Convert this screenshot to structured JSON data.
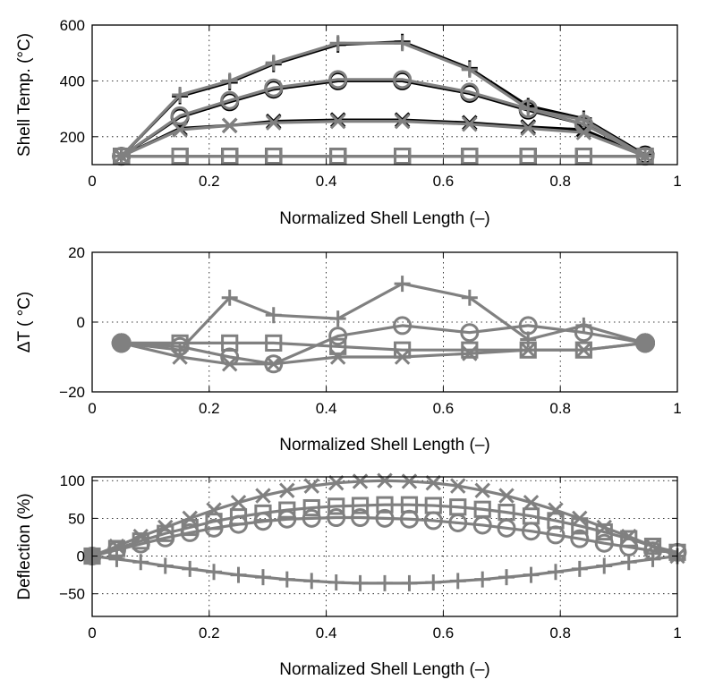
{
  "chart_data": [
    {
      "type": "line",
      "xlabel": "Normalized Shell Length (–)",
      "ylabel": "Shell Temp. (°C)",
      "xlim": [
        0,
        1
      ],
      "ylim": [
        100,
        600
      ],
      "xticks": [
        0,
        0.2,
        0.4,
        0.6,
        0.8,
        1
      ],
      "xtick_labels": [
        "0",
        "0.2",
        "0.4",
        "0.6",
        "0.8",
        "1"
      ],
      "yticks": [
        200,
        400,
        600
      ],
      "ytick_labels": [
        "200",
        "400",
        "600"
      ],
      "grid": true,
      "series": [
        {
          "name": "plus (black)",
          "marker": "plus",
          "color": "#000000",
          "x": [
            0.05,
            0.15,
            0.235,
            0.31,
            0.42,
            0.53,
            0.645,
            0.745,
            0.84,
            0.945
          ],
          "values": [
            130,
            345,
            395,
            460,
            530,
            540,
            445,
            310,
            265,
            135
          ]
        },
        {
          "name": "circle (black)",
          "marker": "circle",
          "color": "#000000",
          "x": [
            0.05,
            0.15,
            0.235,
            0.31,
            0.42,
            0.53,
            0.645,
            0.745,
            0.84,
            0.945
          ],
          "values": [
            130,
            270,
            325,
            370,
            400,
            400,
            355,
            295,
            245,
            135
          ]
        },
        {
          "name": "x (black)",
          "marker": "x",
          "color": "#000000",
          "x": [
            0.05,
            0.15,
            0.235,
            0.31,
            0.42,
            0.53,
            0.645,
            0.745,
            0.84,
            0.945
          ],
          "values": [
            130,
            230,
            240,
            255,
            260,
            260,
            250,
            235,
            225,
            130
          ]
        },
        {
          "name": "square (black)",
          "marker": "square",
          "color": "#000000",
          "x": [
            0.05,
            0.15,
            0.235,
            0.31,
            0.42,
            0.53,
            0.645,
            0.745,
            0.84,
            0.945
          ],
          "values": [
            130,
            130,
            130,
            130,
            130,
            130,
            130,
            130,
            130,
            130
          ]
        },
        {
          "name": "plus (gray)",
          "marker": "plus",
          "color": "#808080",
          "x": [
            0.05,
            0.15,
            0.235,
            0.31,
            0.42,
            0.53,
            0.645,
            0.745,
            0.84,
            0.945
          ],
          "values": [
            130,
            350,
            400,
            465,
            535,
            535,
            440,
            300,
            260,
            130
          ]
        },
        {
          "name": "circle (gray)",
          "marker": "circle",
          "color": "#808080",
          "x": [
            0.05,
            0.15,
            0.235,
            0.31,
            0.42,
            0.53,
            0.645,
            0.745,
            0.84,
            0.945
          ],
          "values": [
            130,
            275,
            330,
            375,
            405,
            405,
            360,
            300,
            245,
            130
          ]
        },
        {
          "name": "x (gray)",
          "marker": "x",
          "color": "#808080",
          "x": [
            0.05,
            0.15,
            0.235,
            0.31,
            0.42,
            0.53,
            0.645,
            0.745,
            0.84,
            0.945
          ],
          "values": [
            130,
            225,
            240,
            250,
            255,
            255,
            245,
            230,
            215,
            130
          ]
        },
        {
          "name": "square (gray)",
          "marker": "square",
          "color": "#808080",
          "x": [
            0.05,
            0.15,
            0.235,
            0.31,
            0.42,
            0.53,
            0.645,
            0.745,
            0.84,
            0.945
          ],
          "values": [
            130,
            130,
            130,
            130,
            130,
            130,
            130,
            130,
            130,
            130
          ]
        }
      ]
    },
    {
      "type": "line",
      "xlabel": "Normalized Shell Length (–)",
      "ylabel": "ΔT ( °C)",
      "xlim": [
        0,
        1
      ],
      "ylim": [
        -20,
        20
      ],
      "xticks": [
        0,
        0.2,
        0.4,
        0.6,
        0.8,
        1
      ],
      "xtick_labels": [
        "0",
        "0.2",
        "0.4",
        "0.6",
        "0.8",
        "1"
      ],
      "yticks": [
        -20,
        0,
        20
      ],
      "ytick_labels": [
        "−20",
        "0",
        "20"
      ],
      "grid": true,
      "series": [
        {
          "name": "plus",
          "marker": "plus",
          "color": "#808080",
          "x": [
            0.05,
            0.15,
            0.235,
            0.31,
            0.42,
            0.53,
            0.645,
            0.745,
            0.84,
            0.945
          ],
          "values": [
            -6,
            -8,
            7,
            2,
            1,
            11,
            7,
            -5,
            -1,
            -6
          ]
        },
        {
          "name": "circle",
          "marker": "circle",
          "color": "#808080",
          "x": [
            0.05,
            0.15,
            0.235,
            0.31,
            0.42,
            0.53,
            0.645,
            0.745,
            0.84,
            0.945
          ],
          "values": [
            -6,
            -7,
            -10,
            -12,
            -4,
            -1,
            -3,
            -1,
            -3,
            -6
          ]
        },
        {
          "name": "x",
          "marker": "x",
          "color": "#808080",
          "x": [
            0.05,
            0.15,
            0.235,
            0.31,
            0.42,
            0.53,
            0.645,
            0.745,
            0.84,
            0.945
          ],
          "values": [
            -6,
            -10,
            -12,
            -12,
            -10,
            -10,
            -9,
            -8,
            -8,
            -6
          ]
        },
        {
          "name": "square",
          "marker": "square",
          "color": "#808080",
          "x": [
            0.05,
            0.15,
            0.235,
            0.31,
            0.42,
            0.53,
            0.645,
            0.745,
            0.84,
            0.945
          ],
          "values": [
            -6,
            -6,
            -6,
            -6,
            -7,
            -8,
            -8,
            -8,
            -8,
            -6
          ]
        }
      ]
    },
    {
      "type": "line",
      "xlabel": "Normalized Shell Length (–)",
      "ylabel": "Deflection (%)",
      "xlim": [
        0,
        1
      ],
      "ylim": [
        -80,
        105
      ],
      "xticks": [
        0,
        0.2,
        0.4,
        0.6,
        0.8,
        1
      ],
      "xtick_labels": [
        "0",
        "0.2",
        "0.4",
        "0.6",
        "0.8",
        "1"
      ],
      "yticks": [
        -50,
        0,
        50,
        100
      ],
      "ytick_labels": [
        "−50",
        "0",
        "50",
        "100"
      ],
      "grid": true,
      "series": [
        {
          "name": "x",
          "marker": "x",
          "color": "#808080",
          "x": [
            0,
            0.042,
            0.083,
            0.125,
            0.167,
            0.208,
            0.25,
            0.292,
            0.333,
            0.375,
            0.417,
            0.458,
            0.5,
            0.542,
            0.583,
            0.625,
            0.667,
            0.708,
            0.75,
            0.792,
            0.833,
            0.875,
            0.917,
            0.958,
            1.0
          ],
          "values": [
            0,
            13,
            26,
            38,
            50,
            61,
            71,
            80,
            87,
            93,
            97,
            99,
            100,
            99,
            97,
            93,
            87,
            80,
            71,
            61,
            50,
            38,
            26,
            13,
            0
          ]
        },
        {
          "name": "square",
          "marker": "square",
          "color": "#808080",
          "x": [
            0,
            0.042,
            0.083,
            0.125,
            0.167,
            0.208,
            0.25,
            0.292,
            0.333,
            0.375,
            0.417,
            0.458,
            0.5,
            0.542,
            0.583,
            0.625,
            0.667,
            0.708,
            0.75,
            0.792,
            0.833,
            0.875,
            0.917,
            0.958,
            1.0
          ],
          "values": [
            0,
            10,
            20,
            30,
            38,
            46,
            52,
            57,
            61,
            64,
            66,
            67,
            68,
            68,
            67,
            65,
            62,
            58,
            53,
            47,
            40,
            32,
            23,
            13,
            5
          ]
        },
        {
          "name": "circle",
          "marker": "circle",
          "color": "#808080",
          "x": [
            0,
            0.042,
            0.083,
            0.125,
            0.167,
            0.208,
            0.25,
            0.292,
            0.333,
            0.375,
            0.417,
            0.458,
            0.5,
            0.542,
            0.583,
            0.625,
            0.667,
            0.708,
            0.75,
            0.792,
            0.833,
            0.875,
            0.917,
            0.958,
            1.0
          ],
          "values": [
            0,
            8,
            16,
            24,
            31,
            37,
            42,
            46,
            49,
            50,
            51,
            51,
            50,
            49,
            47,
            44,
            41,
            37,
            33,
            28,
            23,
            17,
            12,
            7,
            5
          ]
        },
        {
          "name": "plus",
          "marker": "plus",
          "color": "#808080",
          "x": [
            0,
            0.042,
            0.083,
            0.125,
            0.167,
            0.208,
            0.25,
            0.292,
            0.333,
            0.375,
            0.417,
            0.458,
            0.5,
            0.542,
            0.583,
            0.625,
            0.667,
            0.708,
            0.75,
            0.792,
            0.833,
            0.875,
            0.917,
            0.958,
            1.0
          ],
          "values": [
            0,
            -4,
            -8,
            -13,
            -17,
            -21,
            -25,
            -28,
            -31,
            -33,
            -35,
            -36,
            -36,
            -36,
            -35,
            -33,
            -31,
            -28,
            -25,
            -21,
            -17,
            -13,
            -8,
            -4,
            0
          ]
        }
      ]
    }
  ]
}
